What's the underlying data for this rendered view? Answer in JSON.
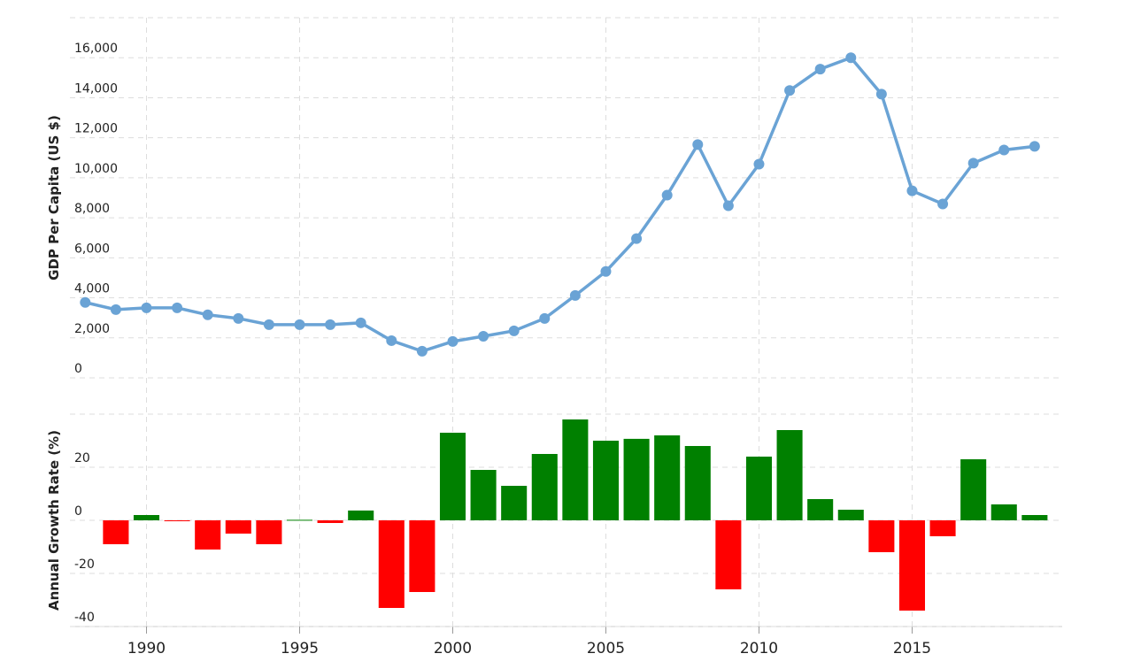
{
  "chart_data": [
    {
      "type": "line",
      "y_label": "GDP Per Capita (US $)",
      "color": "#6aa3d5",
      "x": [
        1988,
        1989,
        1990,
        1991,
        1992,
        1993,
        1994,
        1995,
        1996,
        1997,
        1998,
        1999,
        2000,
        2001,
        2002,
        2003,
        2004,
        2005,
        2006,
        2007,
        2008,
        2009,
        2010,
        2011,
        2012,
        2013,
        2014,
        2015,
        2016,
        2017,
        2018,
        2019
      ],
      "values": [
        3770,
        3410,
        3500,
        3500,
        3150,
        2970,
        2660,
        2660,
        2660,
        2750,
        1860,
        1330,
        1820,
        2080,
        2350,
        2970,
        4120,
        5320,
        6960,
        9130,
        11660,
        8600,
        10680,
        14360,
        15430,
        16000,
        14180,
        9350,
        8690,
        10730,
        11390,
        11570
      ],
      "xlim": [
        1987.5,
        2019.9
      ],
      "ylim": [
        0,
        18000
      ],
      "yticks": [
        0,
        {
          "value": 2000,
          "label": "2,000"
        },
        {
          "value": 4000,
          "label": "4,000"
        },
        {
          "value": 6000,
          "label": "6,000"
        },
        {
          "value": 8000,
          "label": "8,000"
        },
        {
          "value": 10000,
          "label": "10,000"
        },
        {
          "value": 12000,
          "label": "12,000"
        },
        {
          "value": 14000,
          "label": "14,000"
        },
        {
          "value": 16000,
          "label": "16,000"
        }
      ],
      "grid": true
    },
    {
      "type": "bar",
      "y_label": "Annual Growth Rate (%)",
      "positive_color": "#008000",
      "negative_color": "#ff0000",
      "x": [
        1989,
        1990,
        1991,
        1992,
        1993,
        1994,
        1995,
        1996,
        1997,
        1998,
        1999,
        2000,
        2001,
        2002,
        2003,
        2004,
        2005,
        2006,
        2007,
        2008,
        2009,
        2010,
        2011,
        2012,
        2013,
        2014,
        2015,
        2016,
        2017,
        2018,
        2019
      ],
      "values": [
        -9,
        2,
        -0.3,
        -11,
        -5,
        -9,
        0.2,
        -1,
        3.7,
        -33,
        -27,
        33,
        19,
        13,
        25,
        38,
        30,
        30.7,
        32,
        28,
        -26,
        24,
        34,
        8,
        4,
        -12,
        -34,
        -6,
        23,
        6,
        2
      ],
      "xlim": [
        1987.5,
        2019.9
      ],
      "ylim": [
        -40,
        40
      ],
      "xticks": [
        1990,
        1995,
        2000,
        2005,
        2010,
        2015
      ],
      "yticks": [
        -40,
        -20,
        0,
        20
      ],
      "grid": true
    }
  ]
}
